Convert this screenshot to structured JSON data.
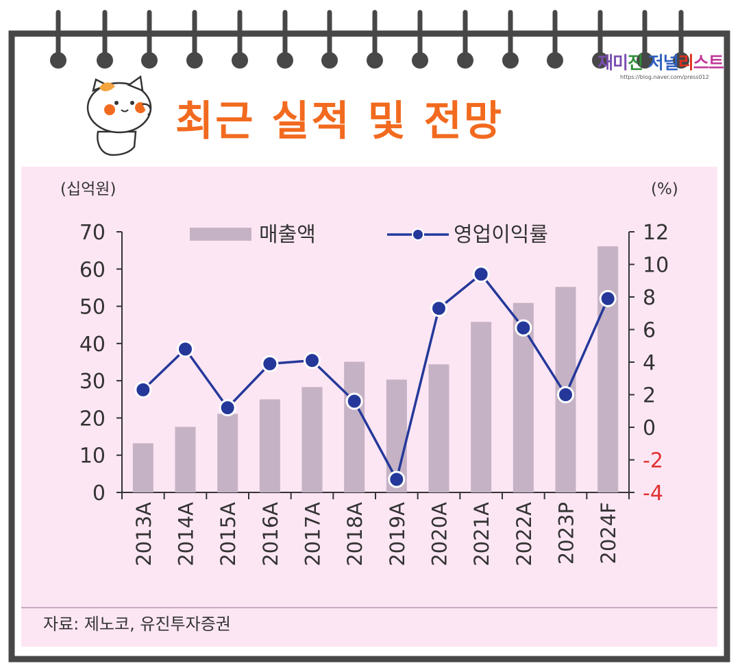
{
  "header": {
    "title": "최근 실적 및 전망",
    "brand_parts": [
      "재미",
      "진",
      " 저널",
      "리",
      "스트"
    ],
    "brand_colors": [
      "#7a4fb0",
      "#2f8f3a",
      "#3060c0",
      "#e0301e",
      "#c03a9a"
    ],
    "brand_url": "https://blog.naver.com/press012"
  },
  "chart_data": {
    "type": "bar+line",
    "categories": [
      "2013A",
      "2014A",
      "2015A",
      "2016A",
      "2017A",
      "2018A",
      "2019A",
      "2020A",
      "2021A",
      "2022A",
      "2023P",
      "2024F"
    ],
    "series": [
      {
        "name": "매출액",
        "type": "bar",
        "axis": "left",
        "values": [
          13.2,
          17.6,
          21.1,
          25.0,
          28.3,
          35.1,
          30.3,
          34.4,
          45.8,
          50.9,
          55.2,
          66.1
        ]
      },
      {
        "name": "영업이익률",
        "type": "line",
        "axis": "right",
        "values": [
          2.3,
          4.8,
          1.2,
          3.9,
          4.1,
          1.6,
          -3.2,
          7.3,
          9.4,
          6.1,
          2.0,
          7.9
        ]
      }
    ],
    "left_axis": {
      "unit_label": "(십억원)",
      "range": [
        0,
        70
      ],
      "ticks": [
        0,
        10,
        20,
        30,
        40,
        50,
        60,
        70
      ]
    },
    "right_axis": {
      "unit_label": "(%)",
      "range": [
        -4,
        12
      ],
      "ticks": [
        -4,
        -2,
        0,
        2,
        4,
        6,
        8,
        10,
        12
      ],
      "negative_color": "#e03030"
    },
    "bar_color": "#c5b2c4",
    "line_color": "#25389a",
    "legend_position": "top-center",
    "source": "자료: 제노코, 유진투자증권"
  }
}
